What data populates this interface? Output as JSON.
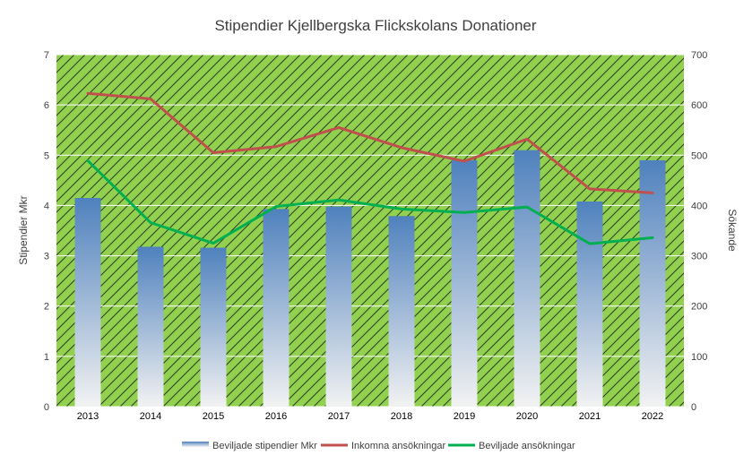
{
  "chart_data": {
    "type": "bar+line",
    "title": "Stipendier Kjellbergska Flickskolans Donationer",
    "categories": [
      "2013",
      "2014",
      "2015",
      "2016",
      "2017",
      "2018",
      "2019",
      "2020",
      "2021",
      "2022"
    ],
    "ylabel_left": "Stipendier Mkr",
    "ylabel_right": "Sökande",
    "ylim_left": [
      0,
      7
    ],
    "ylim_right": [
      0,
      700
    ],
    "yticks_left": [
      "0",
      "1",
      "2",
      "3",
      "4",
      "5",
      "6",
      "7"
    ],
    "yticks_right": [
      "0",
      "100",
      "200",
      "300",
      "400",
      "500",
      "600",
      "700"
    ],
    "series": [
      {
        "name": "Beviljade stipendier Mkr",
        "type": "bar",
        "axis": "left",
        "values": [
          4.15,
          3.18,
          3.16,
          3.93,
          3.98,
          3.79,
          4.9,
          5.1,
          4.08,
          4.9
        ]
      },
      {
        "name": "Inkomna ansökningar",
        "type": "line",
        "axis": "right",
        "values": [
          623,
          612,
          505,
          517,
          555,
          515,
          488,
          532,
          433,
          425
        ]
      },
      {
        "name": "Beviljade ansökningar",
        "type": "line",
        "axis": "right",
        "values": [
          489,
          366,
          325,
          398,
          411,
          393,
          386,
          397,
          324,
          336
        ]
      }
    ],
    "colors": {
      "plot_bg": "#92D050",
      "hatch": "#2e3d1a",
      "grid": "#ffffff",
      "bar_top": "#4F81BD",
      "bar_bottom": "#F2F2F2",
      "line_inkomna": "#C0504D",
      "line_beviljade": "#00B050"
    },
    "legend_position": "bottom"
  }
}
